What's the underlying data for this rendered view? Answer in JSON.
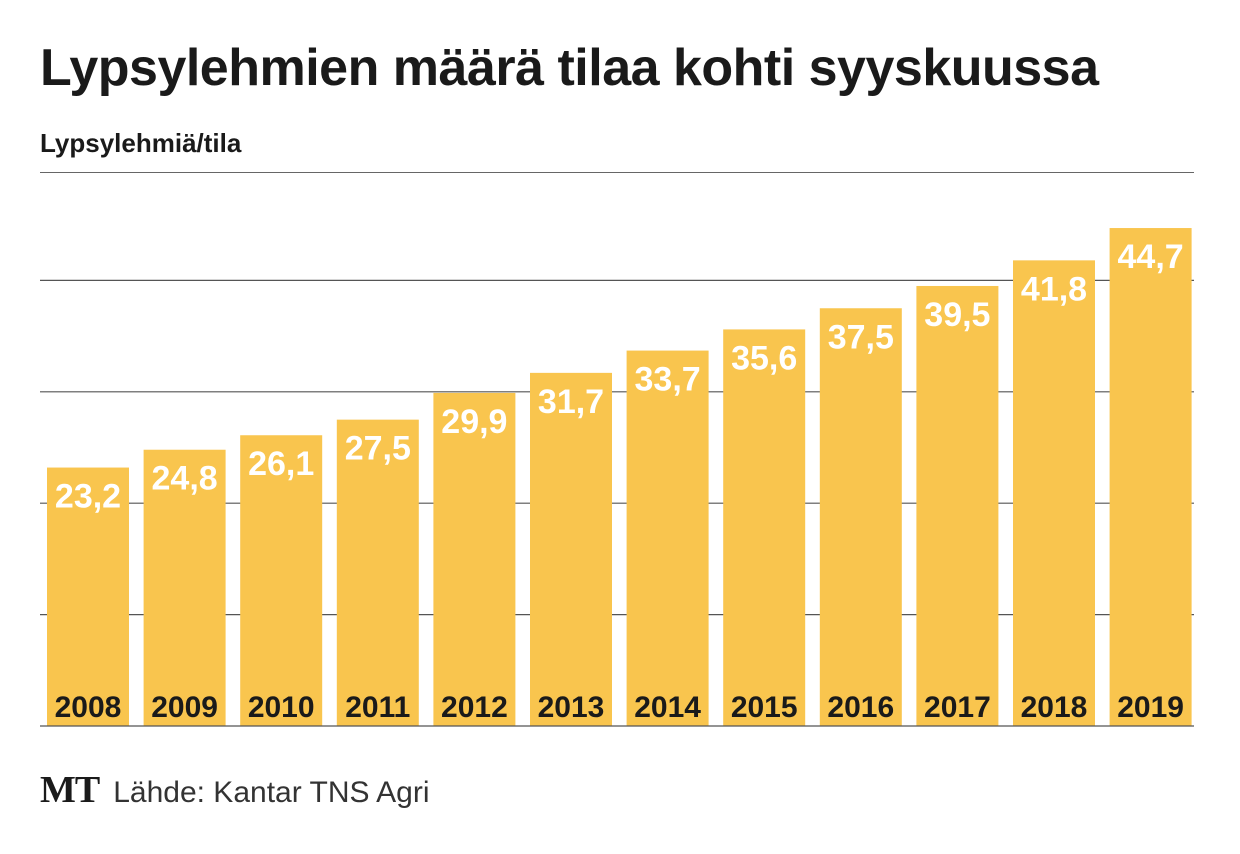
{
  "title": "Lypsylehmien määrä tilaa kohti syyskuussa",
  "unit_label": "Lypsylehmiä/tila",
  "footer": {
    "logo": "MT",
    "source": "Lähde: Kantar TNS Agri"
  },
  "colors": {
    "bar": "#F9C54E",
    "gridline": "#555555",
    "value_text": "#FFFFFF",
    "year_text": "#1A1A1A"
  },
  "chart_data": {
    "type": "bar",
    "title": "Lypsylehmien määrä tilaa kohti syyskuussa",
    "ylabel": "Lypsylehmiä/tila",
    "xlabel": "",
    "categories": [
      "2008",
      "2009",
      "2010",
      "2011",
      "2012",
      "2013",
      "2014",
      "2015",
      "2016",
      "2017",
      "2018",
      "2019"
    ],
    "values": [
      23.2,
      24.8,
      26.1,
      27.5,
      29.9,
      31.7,
      33.7,
      35.6,
      37.5,
      39.5,
      41.8,
      44.7
    ],
    "value_labels": [
      "23,2",
      "24,8",
      "26,1",
      "27,5",
      "29,9",
      "31,7",
      "33,7",
      "35,6",
      "37,5",
      "39,5",
      "41,8",
      "44,7"
    ],
    "ylim": [
      0,
      50
    ],
    "gridlines": [
      10,
      20,
      30,
      40
    ],
    "grid": true,
    "legend": "none"
  }
}
